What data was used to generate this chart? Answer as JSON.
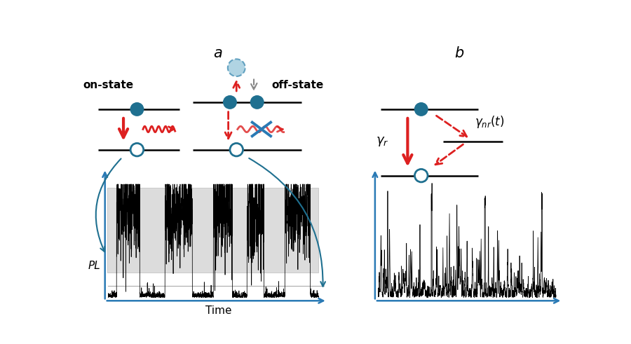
{
  "bg_color": "#ffffff",
  "teal": "#1f7090",
  "teal_light": "#a8d0e0",
  "red": "#dd2020",
  "blue_ax": "#2a7ab5",
  "gray": "#888888",
  "black": "#111111",
  "label_a": "a",
  "label_b": "b",
  "on_state": "on-state",
  "off_state": "off-state",
  "pl_label": "PL",
  "time_label": "Time"
}
